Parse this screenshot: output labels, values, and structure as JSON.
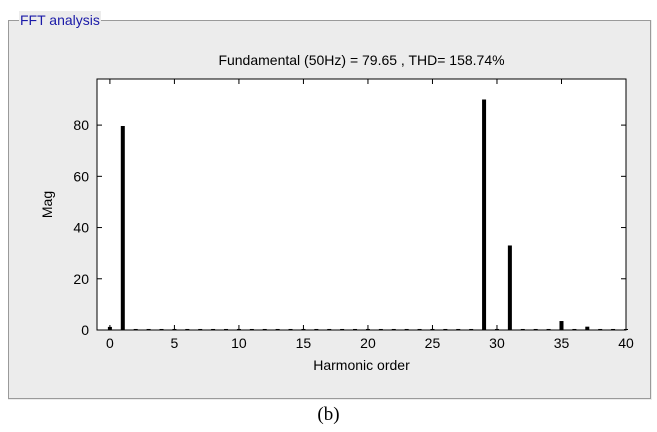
{
  "groupbox": {
    "title": "FFT analysis"
  },
  "caption": "(b)",
  "chart_data": {
    "type": "bar",
    "title": "Fundamental (50Hz) = 79.65 , THD= 158.74%",
    "xlabel": "Harmonic order",
    "ylabel": "Mag",
    "xlim": [
      -1,
      40
    ],
    "ylim": [
      0,
      98
    ],
    "xticks": [
      0,
      5,
      10,
      15,
      20,
      25,
      30,
      35,
      40
    ],
    "yticks": [
      0,
      20,
      40,
      60,
      80
    ],
    "x": [
      0,
      1,
      2,
      3,
      4,
      5,
      6,
      7,
      8,
      9,
      10,
      11,
      12,
      13,
      14,
      15,
      16,
      17,
      18,
      19,
      20,
      21,
      22,
      23,
      24,
      25,
      26,
      27,
      28,
      29,
      30,
      31,
      32,
      33,
      34,
      35,
      36,
      37,
      38,
      39,
      40
    ],
    "values": [
      1.2,
      79.65,
      0.4,
      0.4,
      0.4,
      0.4,
      0.4,
      0.4,
      0.4,
      0.4,
      0.4,
      0.4,
      0.4,
      0.4,
      0.4,
      0.4,
      0.4,
      0.4,
      0.4,
      0.4,
      0.4,
      0.4,
      0.4,
      0.4,
      0.4,
      0.4,
      0.4,
      0.4,
      0.4,
      90,
      0.4,
      33,
      0.4,
      0.4,
      0.4,
      3.5,
      0.4,
      1.3,
      0.4,
      0.4,
      0.4
    ],
    "grid": false,
    "colors": {
      "bar": "#000000",
      "axes_bg": "#ffffff",
      "panel_bg": "#ececec",
      "title_color": "#1a1aa8"
    }
  }
}
